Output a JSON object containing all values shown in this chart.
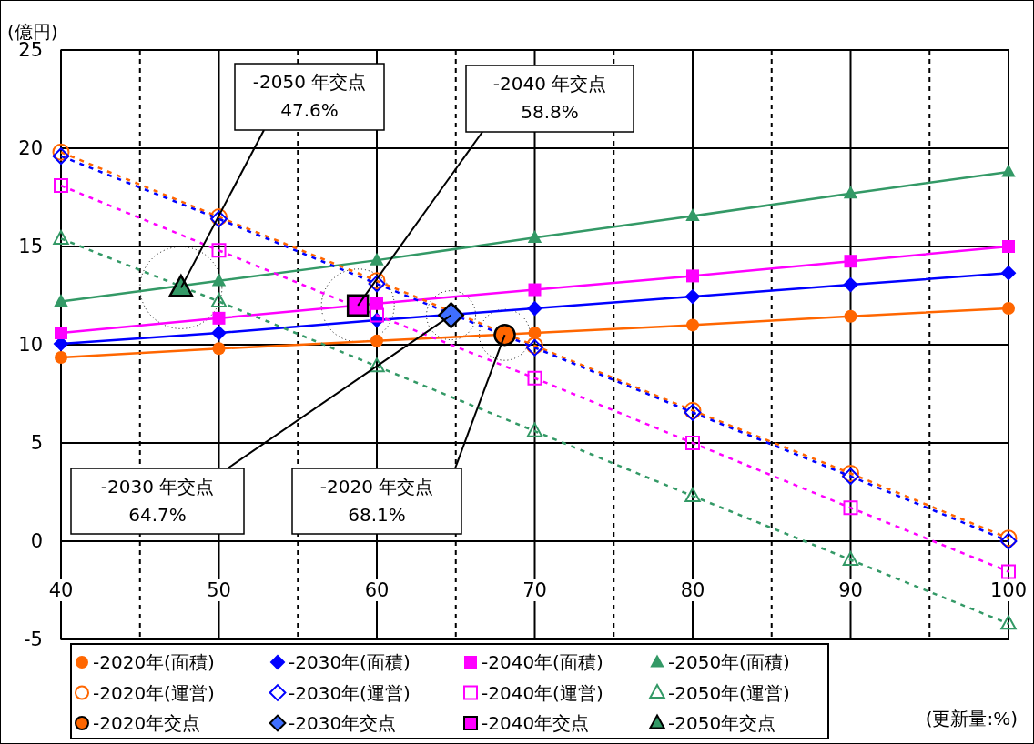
{
  "chart_data": {
    "type": "line",
    "xlabel": "(更新量:%)",
    "ylabel": "(億円)",
    "x": [
      40,
      50,
      60,
      70,
      80,
      90,
      100
    ],
    "xlim": [
      40,
      100
    ],
    "ylim": [
      -5,
      25
    ],
    "xticks": [
      40,
      {
        "value": 45,
        "label": null
      },
      50,
      {
        "value": 55,
        "label": null
      },
      60,
      {
        "value": 65,
        "label": null
      },
      70,
      {
        "value": 75,
        "label": null
      },
      80,
      {
        "value": 85,
        "label": null
      },
      90,
      {
        "value": 95,
        "label": null
      },
      100
    ],
    "yticks": [
      -5,
      0,
      5,
      10,
      15,
      20,
      25
    ],
    "grid": true,
    "legend": "bottom",
    "series": [
      {
        "name": "-2020年(面積)",
        "color": "#ff6600",
        "marker": "circle",
        "line_style": "solid",
        "values": [
          9.35,
          9.8,
          10.2,
          10.6,
          11.0,
          11.45,
          11.85
        ]
      },
      {
        "name": "-2030年(面積)",
        "color": "#0000ff",
        "marker": "diamond",
        "line_style": "solid",
        "values": [
          10.05,
          10.6,
          11.25,
          11.85,
          12.45,
          13.05,
          13.65
        ]
      },
      {
        "name": "-2040年(面積)",
        "color": "#ff00ff",
        "marker": "square",
        "line_style": "solid",
        "values": [
          10.6,
          11.35,
          12.1,
          12.8,
          13.5,
          14.25,
          15.0
        ]
      },
      {
        "name": "-2050年(面積)",
        "color": "#339966",
        "marker": "triangle",
        "line_style": "solid",
        "values": [
          12.2,
          13.25,
          14.3,
          15.45,
          16.55,
          17.7,
          18.8
        ]
      },
      {
        "name": "-2020年(運営)",
        "color": "#ff6600",
        "marker": "circle",
        "line_style": "dashed",
        "values": [
          19.8,
          16.5,
          13.25,
          9.95,
          6.65,
          3.45,
          0.15
        ]
      },
      {
        "name": "-2030年(運営)",
        "color": "#0000ff",
        "marker": "diamond",
        "line_style": "dashed",
        "values": [
          19.6,
          16.4,
          13.1,
          9.85,
          6.55,
          3.3,
          0.0
        ]
      },
      {
        "name": "-2040年(運営)",
        "color": "#ff00ff",
        "marker": "square",
        "line_style": "dashed",
        "values": [
          18.1,
          14.8,
          11.5,
          8.3,
          5.0,
          1.7,
          -1.55
        ]
      },
      {
        "name": "-2050年(運営)",
        "color": "#339966",
        "marker": "triangle",
        "line_style": "dashed",
        "values": [
          15.4,
          12.2,
          8.9,
          5.6,
          2.3,
          -0.95,
          -4.2
        ]
      },
      {
        "name": "-2020年交点",
        "type": "scatter",
        "color": "#ff6600",
        "marker": "circle",
        "x": [
          68.1
        ],
        "values": [
          10.5
        ]
      },
      {
        "name": "-2030年交点",
        "type": "scatter",
        "color": "#3f6fff",
        "marker": "diamond",
        "x": [
          64.7
        ],
        "values": [
          11.5
        ]
      },
      {
        "name": "-2040年交点",
        "type": "scatter",
        "color": "#ff00ff",
        "marker": "square",
        "x": [
          58.8
        ],
        "values": [
          12.0
        ]
      },
      {
        "name": "-2050年交点",
        "type": "scatter",
        "color": "#339966",
        "marker": "triangle",
        "x": [
          47.6
        ],
        "values": [
          12.9
        ]
      }
    ],
    "annotations": [
      {
        "text": "-2050 年交点\n47.6%",
        "x": 47.6,
        "y": 12.9
      },
      {
        "text": "-2040 年交点\n58.8%",
        "x": 58.8,
        "y": 12.0
      },
      {
        "text": "-2030 年交点\n64.7%",
        "x": 64.7,
        "y": 11.5
      },
      {
        "text": "-2020 年交点\n68.1%",
        "x": 68.1,
        "y": 10.5
      }
    ]
  }
}
